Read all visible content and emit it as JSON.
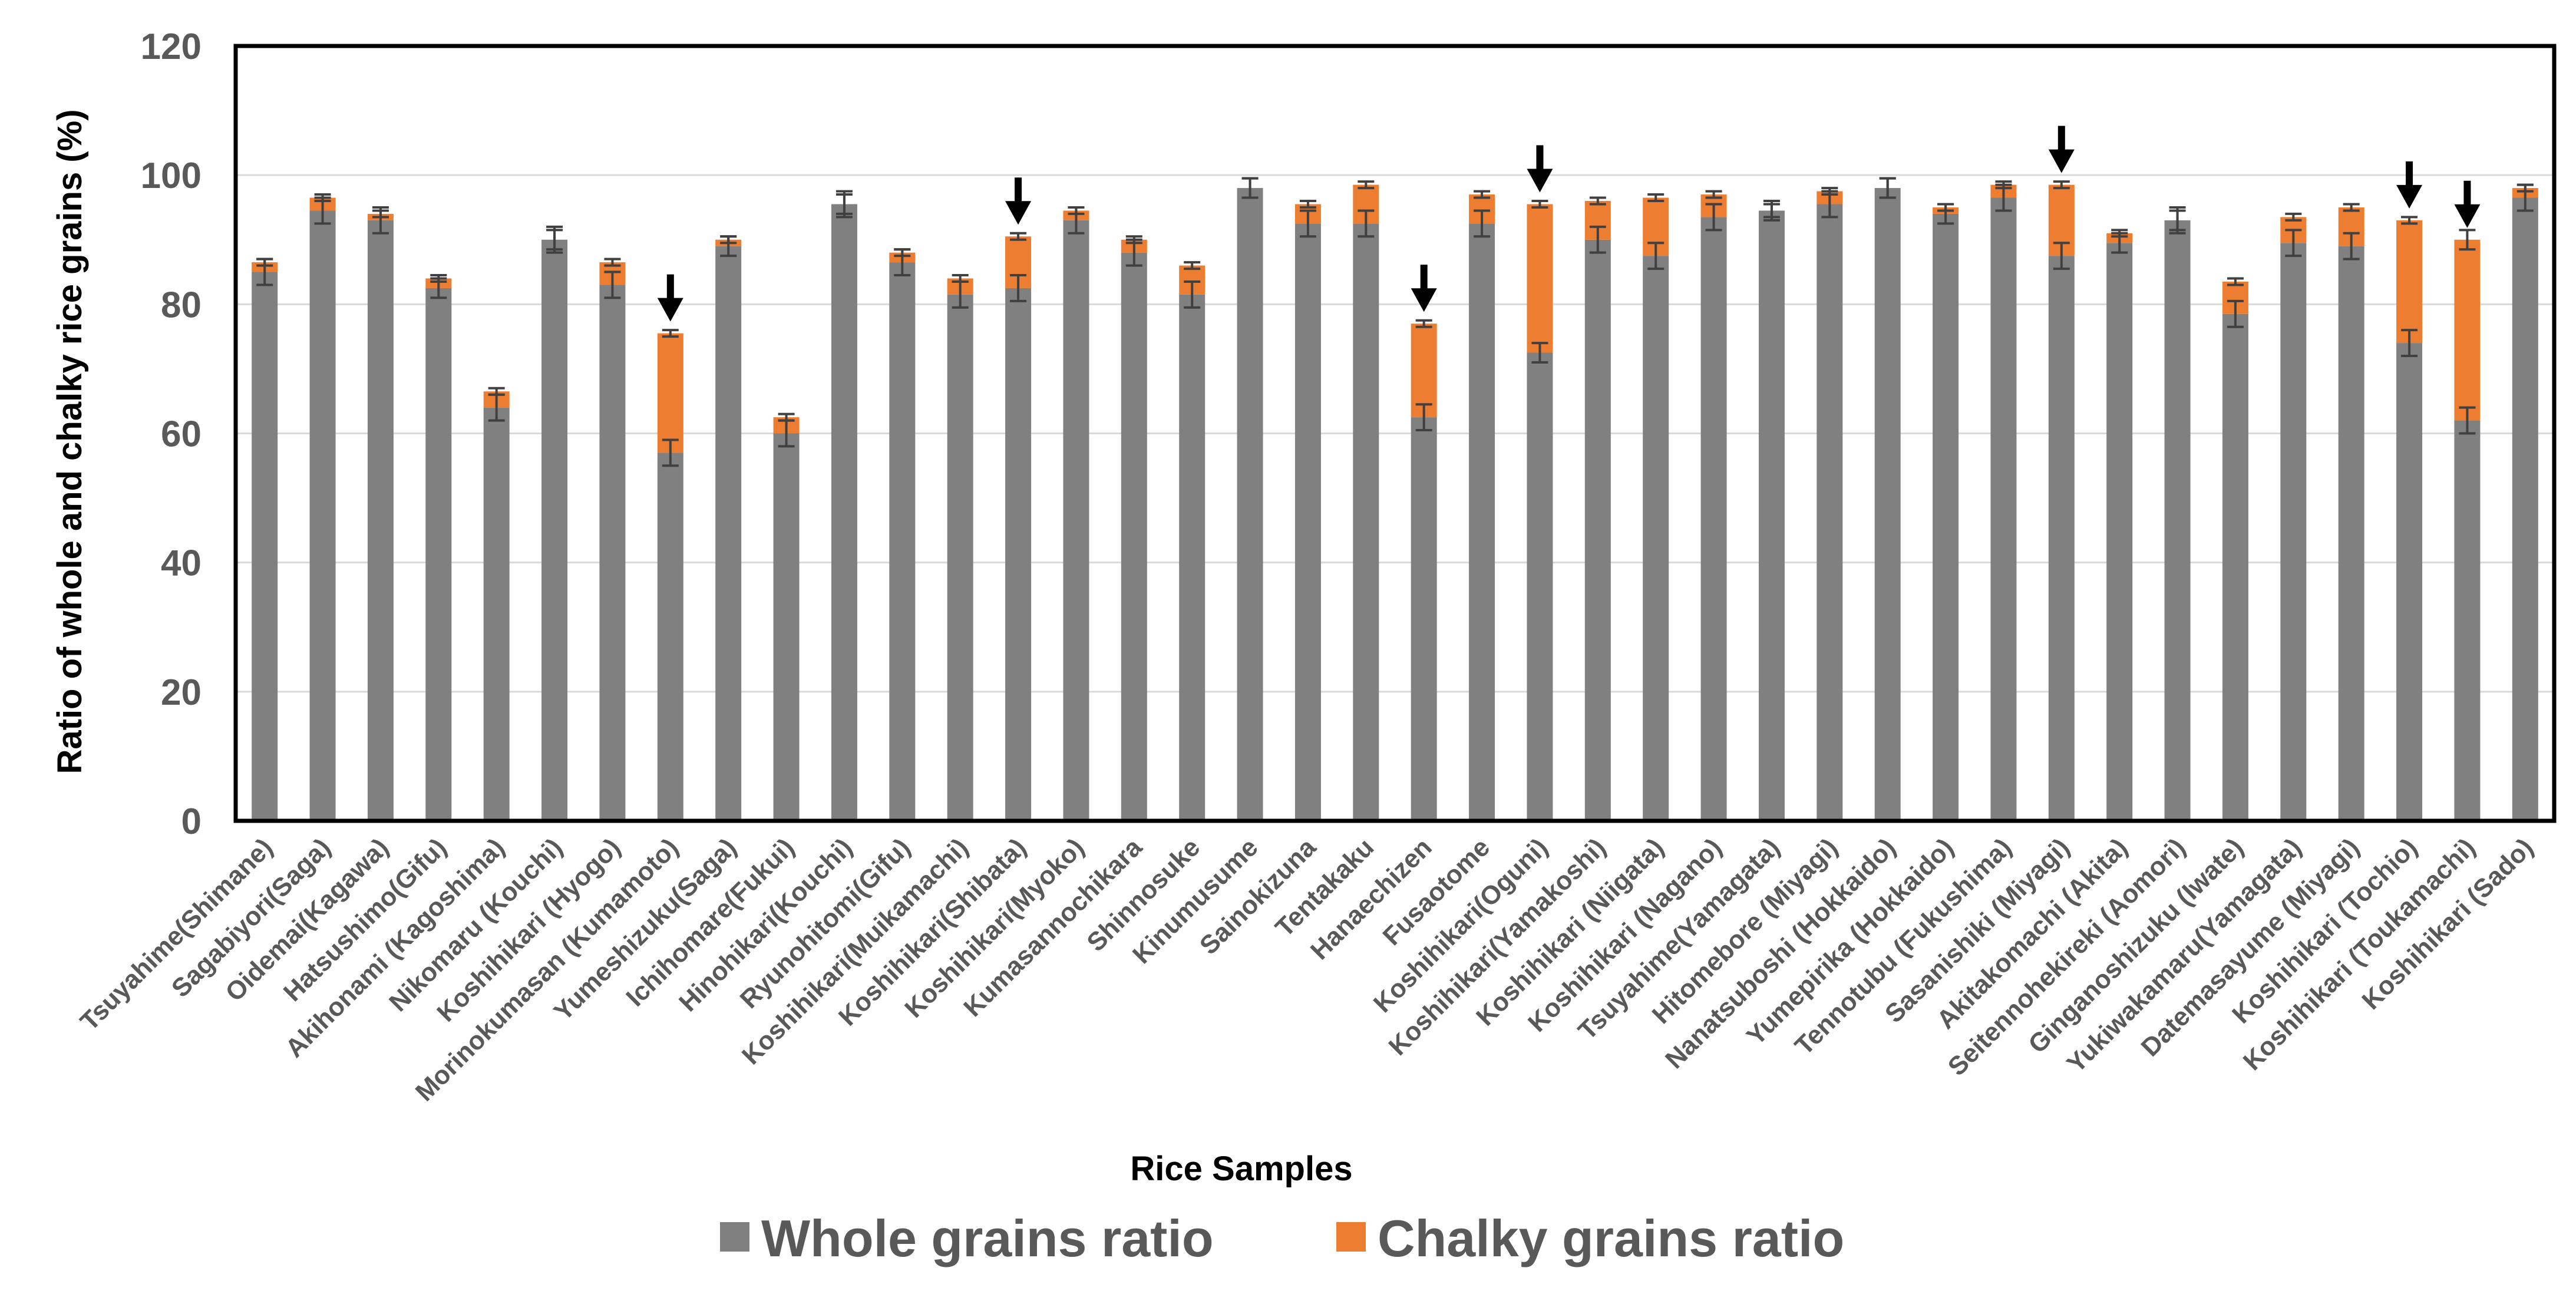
{
  "chart_data": {
    "type": "bar",
    "stacked": true,
    "xlabel": "Rice Samples",
    "ylabel": "Ratio of whole and chalky rice grains (%)",
    "ylim": [
      0,
      120
    ],
    "yticks": [
      0,
      20,
      40,
      60,
      80,
      100,
      120
    ],
    "grid": true,
    "legend_position": "bottom",
    "categories": [
      "Tsuyahime(Shimane)",
      "Sagabiyori(Saga)",
      "Oidemai(Kagawa)",
      "Hatsushimo(Gifu)",
      "Akihonami (Kagoshima)",
      "Nikomaru (Kouchi)",
      "Koshihikari (Hyogo)",
      "Morinokumasan (Kumamoto)",
      "Yumeshizuku(Saga)",
      "Ichihomare(Fukui)",
      "Hinohikari(Kouchi)",
      "Ryunohitomi(Gifu)",
      "Koshihikari(Muikamachi)",
      "Koshihikari(Shibata)",
      "Koshihikari(Myoko)",
      "Kumasannochikara",
      "Shinnosuke",
      "Kinumusume",
      "Sainokizuna",
      "Tentakaku",
      "Hanaechizen",
      "Fusaotome",
      "Koshihikari(Oguni)",
      "Koshihikari(Yamakoshi)",
      "Koshihikari (Niigata)",
      "Koshihikari (Nagano)",
      "Tsuyahime(Yamagata)",
      "Hitomebore (Miyagi)",
      "Nanatsuboshi (Hokkaido)",
      "Yumepirika (Hokkaido)",
      "Tennotubu (Fukushima)",
      "Sasanishiki (Miyagi)",
      "Akitakomachi (Akita)",
      "Seitennohekireki (Aomori)",
      "Ginganoshizuku (Iwate)",
      "Yukiwakamaru(Yamagata)",
      "Datemasayume (Miyagi)",
      "Koshihikari (Tochio)",
      "Koshihikari (Toukamachi)",
      "Koshihikari (Sado)"
    ],
    "series": [
      {
        "name": "Whole grains ratio",
        "color": "#808080",
        "values": [
          85,
          94.5,
          93,
          82.5,
          64,
          90,
          83,
          57,
          89,
          60,
          95.5,
          86.5,
          81.5,
          82.5,
          93,
          88,
          81.5,
          98,
          92.5,
          92.5,
          62.5,
          92.5,
          72.5,
          90,
          87.5,
          93.5,
          94.5,
          95.5,
          98,
          94,
          96.5,
          87.5,
          89.5,
          93,
          78.5,
          89.5,
          89,
          74,
          62,
          96.5
        ],
        "errors": [
          2,
          2,
          2,
          1.5,
          2,
          2,
          2,
          2,
          1.5,
          2,
          2,
          2,
          2,
          2,
          2,
          2,
          2,
          1.5,
          2,
          2,
          2,
          2,
          1.5,
          2,
          2,
          2,
          1.5,
          2,
          1.5,
          1.5,
          2,
          2,
          1.5,
          2,
          2,
          2,
          2,
          2,
          2,
          2
        ]
      },
      {
        "name": "Chalky grains ratio",
        "color": "#ED7D31",
        "values": [
          1.5,
          2,
          1,
          1.5,
          2.5,
          0,
          3.5,
          18.5,
          1,
          2.5,
          0,
          1.5,
          2.5,
          8,
          1.5,
          2,
          4.5,
          0,
          3,
          6,
          14.5,
          4.5,
          23,
          6,
          9,
          3.5,
          0,
          2,
          0,
          1,
          2,
          11,
          1.5,
          0,
          5,
          4,
          6,
          19,
          28,
          1.5
        ],
        "errors": [
          0.5,
          0.5,
          0.5,
          0.5,
          0.5,
          1.5,
          0.5,
          0.5,
          0.5,
          0.5,
          1.5,
          0.5,
          0.5,
          0.5,
          0.5,
          0.5,
          0.5,
          1.5,
          0.5,
          0.5,
          0.5,
          0.5,
          0.5,
          0.5,
          0.5,
          0.5,
          1,
          0.5,
          1.5,
          0.5,
          0.5,
          0.5,
          0.5,
          1.5,
          0.5,
          0.5,
          0.5,
          0.5,
          1.5,
          0.5
        ]
      }
    ],
    "arrow_indices": [
      7,
      13,
      20,
      22,
      31,
      37,
      38
    ],
    "legend": [
      "Whole grains ratio",
      "Chalky grains ratio"
    ]
  }
}
